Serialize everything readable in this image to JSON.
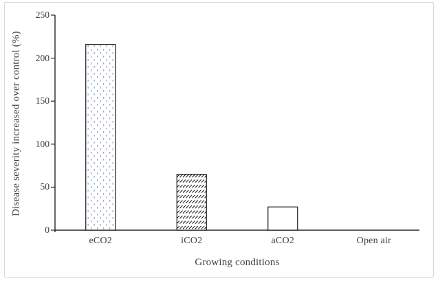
{
  "figure": {
    "background": "#ffffff",
    "border_color": "#d9d9d9"
  },
  "chart_data": {
    "type": "bar",
    "title": "",
    "categories": [
      "eCO2",
      "iCO2",
      "aCO2",
      "Open air"
    ],
    "values": [
      216,
      65,
      27,
      0
    ],
    "xlabel": "Growing conditions",
    "ylabel": "Disease severity increased over control (%)",
    "ylim": [
      0,
      250
    ],
    "yticks": [
      0,
      50,
      100,
      150,
      200,
      250
    ],
    "grid": false,
    "legend": false,
    "bar_patterns": [
      "dotted",
      "diagonal-hatch",
      "solid-white",
      "none"
    ],
    "colors": {
      "bar_outline": "#1a1a1a",
      "dot_pattern": "#93a9c7",
      "hatch_pattern": "#1a1a1a",
      "axis_line": "#262626",
      "text": "#404040"
    }
  }
}
